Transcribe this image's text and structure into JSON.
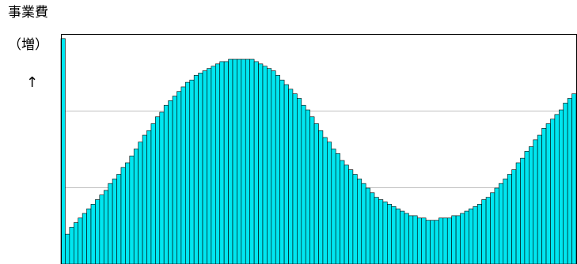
{
  "chart_data": {
    "type": "bar",
    "title": "事業費",
    "ylabel": "（増）",
    "y_direction_marker": "↑",
    "xlabel": "",
    "ylim": [
      0,
      100
    ],
    "grid": true,
    "colors": {
      "bar": "#00e6f0",
      "edge": "#000000",
      "grid": "#c0c0c0",
      "frame": "#000000"
    },
    "values": [
      98,
      13,
      16,
      18,
      20,
      22,
      24,
      26,
      28,
      30,
      32,
      35,
      37,
      39,
      42,
      44,
      47,
      50,
      53,
      56,
      58,
      61,
      64,
      66,
      69,
      71,
      73,
      75,
      77,
      79,
      80,
      82,
      83,
      84,
      85,
      86,
      87,
      88,
      88,
      89,
      89,
      89,
      89,
      89,
      89,
      88,
      87,
      86,
      85,
      84,
      82,
      80,
      78,
      76,
      74,
      72,
      69,
      67,
      64,
      61,
      58,
      55,
      53,
      50,
      48,
      45,
      43,
      41,
      39,
      37,
      35,
      33,
      31,
      29,
      28,
      27,
      26,
      25,
      24,
      23,
      22,
      21,
      21,
      20,
      20,
      19,
      19,
      19,
      20,
      20,
      20,
      21,
      21,
      22,
      23,
      24,
      25,
      26,
      28,
      29,
      31,
      33,
      35,
      37,
      39,
      41,
      44,
      46,
      49,
      51,
      54,
      56,
      59,
      61,
      63,
      65,
      67,
      70,
      72,
      74
    ]
  }
}
